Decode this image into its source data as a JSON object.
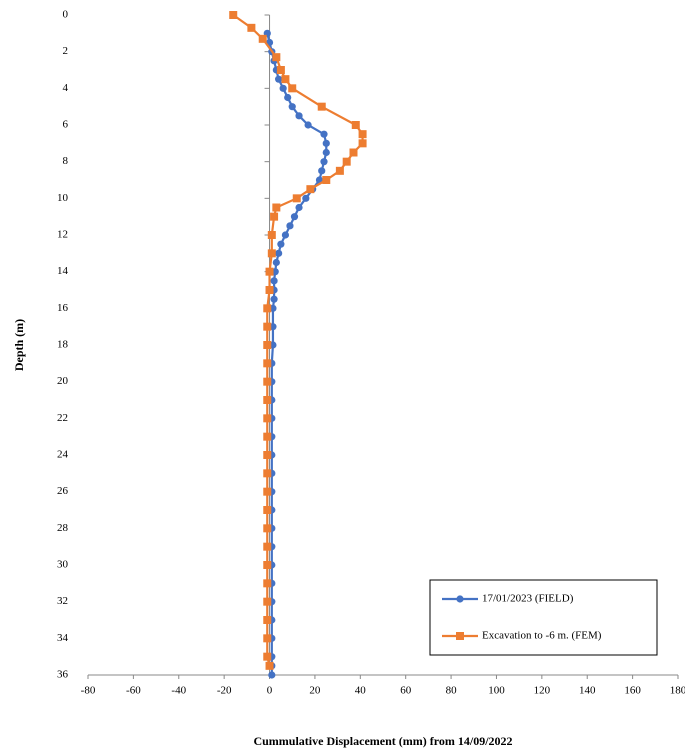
{
  "chart_data": {
    "type": "line",
    "x_label": "Cummulative Displacement (mm) from 14/09/2022",
    "y_label": "Depth (m)",
    "xlim": [
      -80,
      180
    ],
    "xticks": [
      -80,
      -60,
      -40,
      -20,
      0,
      20,
      40,
      60,
      80,
      100,
      120,
      140,
      160,
      180
    ],
    "ylim": [
      0,
      36
    ],
    "yticks": [
      0,
      2,
      4,
      6,
      8,
      10,
      12,
      14,
      16,
      18,
      20,
      22,
      24,
      26,
      28,
      30,
      32,
      34,
      36
    ],
    "y_inverted": true,
    "grid": false,
    "legend": "lower right",
    "series": [
      {
        "name": "17/01/2023 (FIELD)",
        "color": "#4472c4",
        "marker": "circle",
        "x": [
          -1,
          0,
          1,
          2,
          3,
          4,
          6,
          8,
          10,
          13,
          17,
          24,
          25,
          25,
          24,
          23,
          22,
          19,
          16,
          13,
          11,
          9,
          7,
          5,
          4,
          3,
          2.5,
          2,
          2,
          2,
          1.5,
          1.5,
          1.5,
          1,
          1,
          1,
          1,
          1,
          1,
          1,
          1,
          1,
          1,
          1,
          1,
          1,
          1,
          1,
          1,
          1,
          1,
          1
        ],
        "y": [
          1,
          1.5,
          2,
          2.5,
          3,
          3.5,
          4,
          4.5,
          5,
          5.5,
          6,
          6.5,
          7,
          7.5,
          8,
          8.5,
          9,
          9.5,
          10,
          10.5,
          11,
          11.5,
          12,
          12.5,
          13,
          13.5,
          14,
          14.5,
          15,
          15.5,
          16,
          17,
          18,
          19,
          20,
          21,
          22,
          23,
          24,
          25,
          26,
          27,
          28,
          29,
          30,
          31,
          32,
          33,
          34,
          35,
          35.5,
          36
        ]
      },
      {
        "name": "Excavation to -6 m. (FEM)",
        "color": "#ed7d31",
        "marker": "square",
        "x": [
          -16,
          -8,
          -3,
          3,
          5,
          7,
          10,
          23,
          38,
          41,
          41,
          37,
          34,
          31,
          25,
          18,
          12,
          3,
          2,
          1,
          1,
          0,
          0,
          -1,
          -1,
          -1,
          -1,
          -1,
          -1,
          -1,
          -1,
          -1,
          -1,
          -1,
          -1,
          -1,
          -1,
          -1,
          -1,
          -1,
          -1,
          -1,
          -1,
          0
        ],
        "y": [
          0,
          0.7,
          1.3,
          2.3,
          3,
          3.5,
          4,
          5,
          6,
          6.5,
          7,
          7.5,
          8,
          8.5,
          9,
          9.5,
          10,
          10.5,
          11,
          12,
          13,
          14,
          15,
          16,
          17,
          18,
          19,
          20,
          21,
          22,
          23,
          24,
          25,
          26,
          27,
          28,
          29,
          30,
          31,
          32,
          33,
          34,
          35,
          35.5
        ]
      }
    ]
  }
}
